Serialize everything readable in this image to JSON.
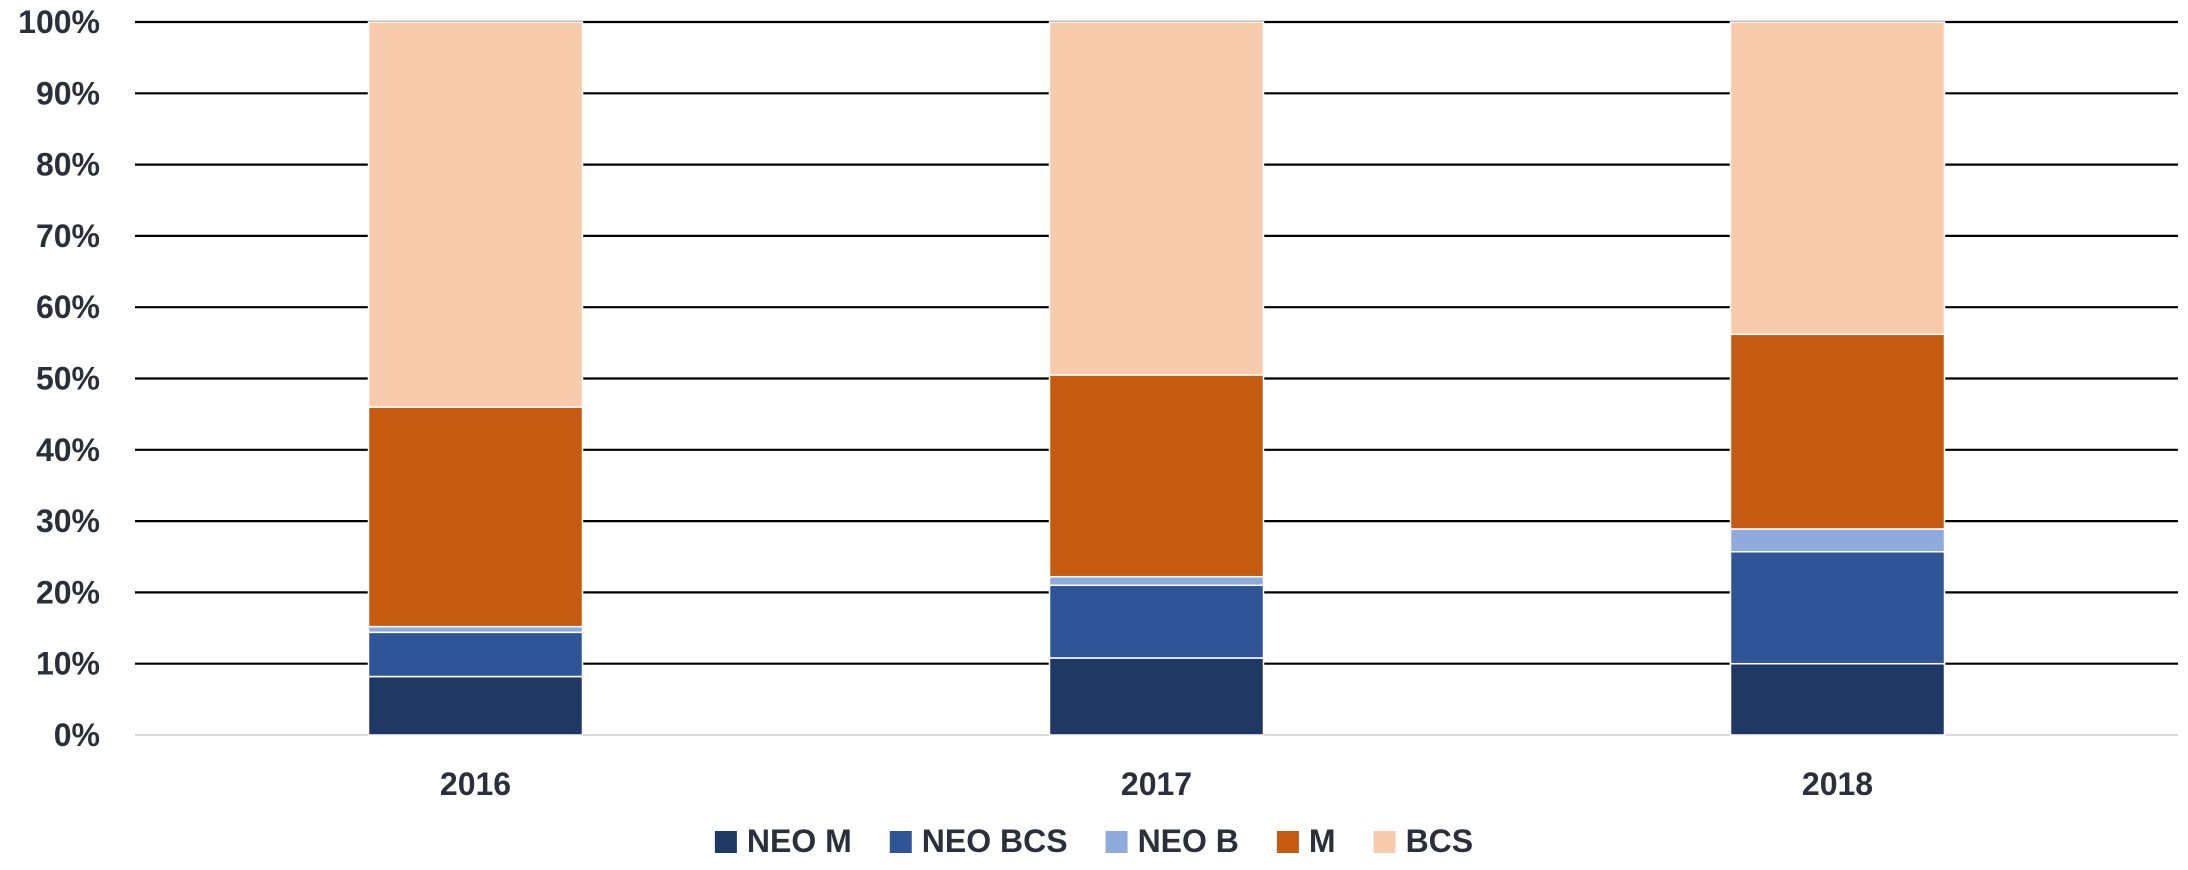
{
  "chart_data": {
    "type": "bar",
    "stacked": true,
    "percent": true,
    "categories": [
      "2016",
      "2017",
      "2018"
    ],
    "series": [
      {
        "name": "NEO M",
        "color": "#203864",
        "values": [
          8.2,
          10.8,
          10.0
        ]
      },
      {
        "name": "NEO BCS",
        "color": "#2f5597",
        "values": [
          6.2,
          10.2,
          15.7
        ]
      },
      {
        "name": "NEO B",
        "color": "#8faadc",
        "values": [
          0.8,
          1.2,
          3.2
        ]
      },
      {
        "name": "M",
        "color": "#c55a11",
        "values": [
          30.8,
          28.3,
          27.3
        ]
      },
      {
        "name": "BCS",
        "color": "#f8cbad",
        "values": [
          54.0,
          49.5,
          43.8
        ]
      }
    ],
    "yticks": [
      "0%",
      "10%",
      "20%",
      "30%",
      "40%",
      "50%",
      "60%",
      "70%",
      "80%",
      "90%",
      "100%"
    ],
    "ylim": [
      0,
      100
    ],
    "grid": true,
    "legend_position": "bottom"
  }
}
